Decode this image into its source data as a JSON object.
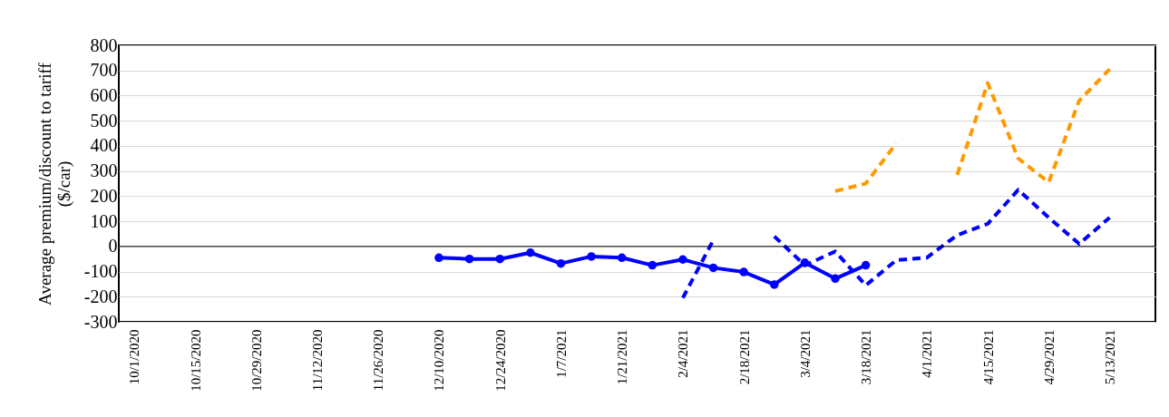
{
  "chart_data": {
    "type": "line",
    "ylabel": "Average premium/discount  to tariff\n($/car)",
    "categories": [
      "10/1/2020",
      null,
      "10/15/2020",
      null,
      "10/29/2020",
      null,
      "11/12/2020",
      null,
      "11/26/2020",
      null,
      "12/10/2020",
      null,
      "12/24/2020",
      null,
      "1/7/2021",
      null,
      "1/21/2021",
      null,
      "2/4/2021",
      null,
      "2/18/2021",
      null,
      "3/4/2021",
      null,
      "3/18/2021",
      null,
      "4/1/2021",
      null,
      "4/15/2021",
      null,
      "4/29/2021",
      null,
      "5/13/2021",
      null
    ],
    "series": [
      {
        "color": "#0000ff",
        "line_style": "solid",
        "marker": "circle",
        "values": [
          null,
          null,
          null,
          null,
          null,
          null,
          null,
          null,
          null,
          null,
          -45,
          -50,
          -50,
          -25,
          -68,
          -40,
          -45,
          -75,
          -52,
          -85,
          -102,
          -152,
          -65,
          -128,
          -75,
          null,
          null,
          null,
          null,
          null,
          null,
          null,
          null,
          null
        ]
      },
      {
        "color": "#0000ff",
        "line_style": "dashed",
        "marker": "none",
        "values": [
          null,
          null,
          null,
          null,
          null,
          null,
          null,
          null,
          null,
          null,
          null,
          null,
          null,
          null,
          null,
          null,
          null,
          null,
          -205,
          25,
          null,
          40,
          -75,
          -20,
          -155,
          -55,
          -45,
          45,
          90,
          225,
          115,
          10,
          115,
          null
        ]
      },
      {
        "color": "#ff9900",
        "line_style": "dashed",
        "marker": "none",
        "values": [
          null,
          null,
          null,
          null,
          null,
          null,
          null,
          null,
          null,
          null,
          null,
          null,
          null,
          null,
          null,
          null,
          null,
          null,
          null,
          null,
          null,
          null,
          null,
          220,
          250,
          410,
          null,
          285,
          650,
          350,
          255,
          580,
          705,
          null
        ]
      }
    ],
    "ylim": [
      -300,
      800
    ],
    "yticks": [
      -300,
      -200,
      -100,
      0,
      100,
      200,
      300,
      400,
      500,
      600,
      700,
      800
    ],
    "grid": "y",
    "ref_lines": [
      {
        "axis": "y",
        "value": 0,
        "color": "#000000"
      }
    ]
  }
}
